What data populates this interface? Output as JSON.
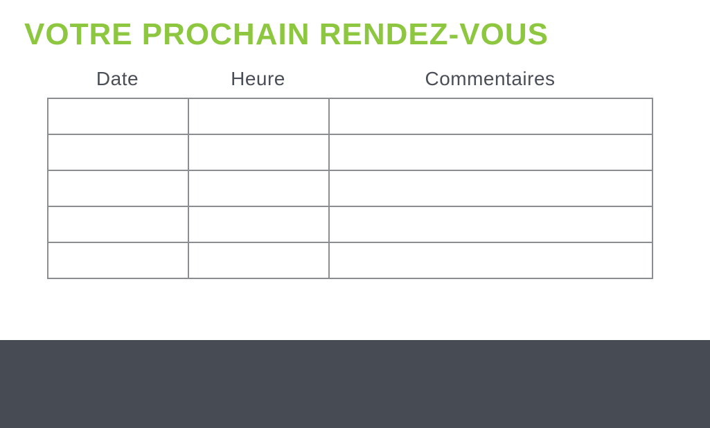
{
  "title": {
    "text": "VOTRE PROCHAIN RENDEZ-VOUS",
    "color": "#8dc63f"
  },
  "table": {
    "headers": [
      "Date",
      "Heure",
      "Commentaires"
    ],
    "rows": [
      [
        "",
        "",
        ""
      ],
      [
        "",
        "",
        ""
      ],
      [
        "",
        "",
        ""
      ],
      [
        "",
        "",
        ""
      ],
      [
        "",
        "",
        ""
      ]
    ],
    "border_color": "#8a8e93",
    "header_text_color": "#4a4e57"
  },
  "footer": {
    "background_color": "#474b54"
  }
}
